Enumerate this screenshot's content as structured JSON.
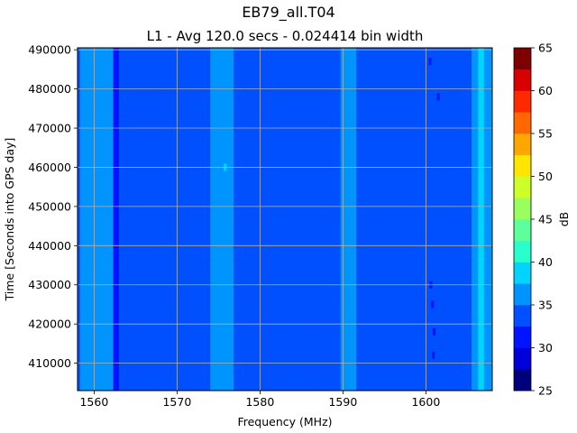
{
  "chart_data": {
    "type": "heatmap",
    "title": "EB79_all.T04",
    "subtitle": "L1 - Avg 120.0 secs - 0.024414 bin width",
    "xlabel": "Frequency (MHz)",
    "ylabel": "Time [Seconds into GPS day]",
    "colorbar_label": "dB",
    "xlim": [
      1558,
      1608
    ],
    "ylim": [
      403000,
      490500
    ],
    "xticks": [
      1560,
      1570,
      1580,
      1590,
      1600
    ],
    "yticks": [
      410000,
      420000,
      430000,
      440000,
      450000,
      460000,
      470000,
      480000,
      490000
    ],
    "colorbar_levels": [
      25,
      27.5,
      30,
      32.5,
      35,
      37.5,
      40,
      42.5,
      45,
      47.5,
      50,
      52.5,
      55,
      57.5,
      60,
      62.5,
      65
    ],
    "colorbar_ticks": [
      25,
      30,
      35,
      40,
      45,
      50,
      55,
      60,
      65
    ],
    "colorbar_colors": [
      "#00007f",
      "#0000d8",
      "#0014ff",
      "#0050ff",
      "#0094ff",
      "#00d4ff",
      "#29ffcd",
      "#5dff9a",
      "#9aff5d",
      "#cdff29",
      "#ffe500",
      "#ffa700",
      "#ff6800",
      "#ff2900",
      "#d80000",
      "#7f0000"
    ],
    "background_level_db": 33.5,
    "frequency_bands": [
      {
        "from": 1558.5,
        "to": 1559.2,
        "level_db": 36
      },
      {
        "from": 1562.3,
        "to": 1563.0,
        "level_db": 31
      },
      {
        "from": 1558.3,
        "to": 1562.3,
        "level_db": 36.5
      },
      {
        "from": 1574.0,
        "to": 1576.8,
        "level_db": 36
      },
      {
        "from": 1575.0,
        "to": 1576.0,
        "level_db": 37
      },
      {
        "from": 1589.7,
        "to": 1591.6,
        "level_db": 36
      },
      {
        "from": 1605.5,
        "to": 1608.0,
        "level_db": 36
      },
      {
        "from": 1606.3,
        "to": 1607.0,
        "level_db": 39
      }
    ],
    "spots": [
      {
        "freq": 1600.8,
        "time": 425000,
        "level_db": 31
      },
      {
        "freq": 1600.6,
        "time": 430000,
        "level_db": 31
      },
      {
        "freq": 1601.0,
        "time": 418000,
        "level_db": 31
      },
      {
        "freq": 1600.9,
        "time": 412000,
        "level_db": 31
      },
      {
        "freq": 1601.5,
        "time": 478000,
        "level_db": 31
      },
      {
        "freq": 1600.5,
        "time": 487000,
        "level_db": 31
      },
      {
        "freq": 1575.8,
        "time": 460000,
        "level_db": 39
      }
    ],
    "grid": true
  }
}
